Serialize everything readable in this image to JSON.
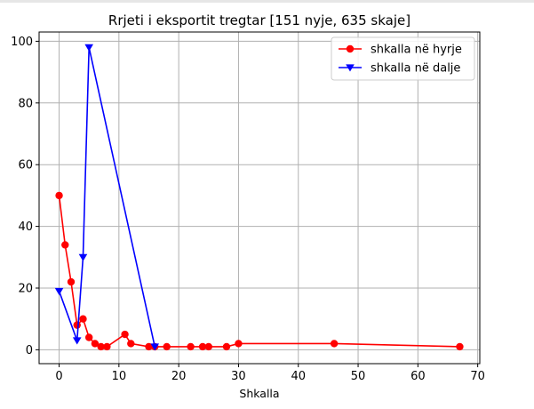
{
  "chart_data": {
    "type": "line",
    "title": "Rrjeti i eksportit tregtar [151 nyje, 635 skaje]",
    "xlabel": "Shkalla",
    "ylabel": "",
    "xlim": [
      -3.35,
      70.35
    ],
    "ylim": [
      -4.5,
      103.0
    ],
    "xticks": [
      0,
      10,
      20,
      30,
      40,
      50,
      60,
      70
    ],
    "yticks": [
      0,
      20,
      40,
      60,
      80,
      100
    ],
    "grid": true,
    "legend_position": "top-right",
    "series": [
      {
        "name": "shkalla në hyrje",
        "color": "#ff0000",
        "marker": "circle",
        "x": [
          0,
          1,
          2,
          3,
          4,
          5,
          6,
          7,
          8,
          11,
          12,
          15,
          16,
          18,
          22,
          24,
          25,
          28,
          30,
          46,
          67
        ],
        "y": [
          50,
          34,
          22,
          8,
          10,
          4,
          2,
          1,
          1,
          5,
          2,
          1,
          1,
          1,
          1,
          1,
          1,
          1,
          2,
          2,
          1
        ]
      },
      {
        "name": "shkalla në dalje",
        "color": "#0000ff",
        "marker": "triangle-down",
        "x": [
          0,
          3,
          4,
          5,
          16
        ],
        "y": [
          19,
          3,
          30,
          98,
          1
        ]
      }
    ]
  }
}
